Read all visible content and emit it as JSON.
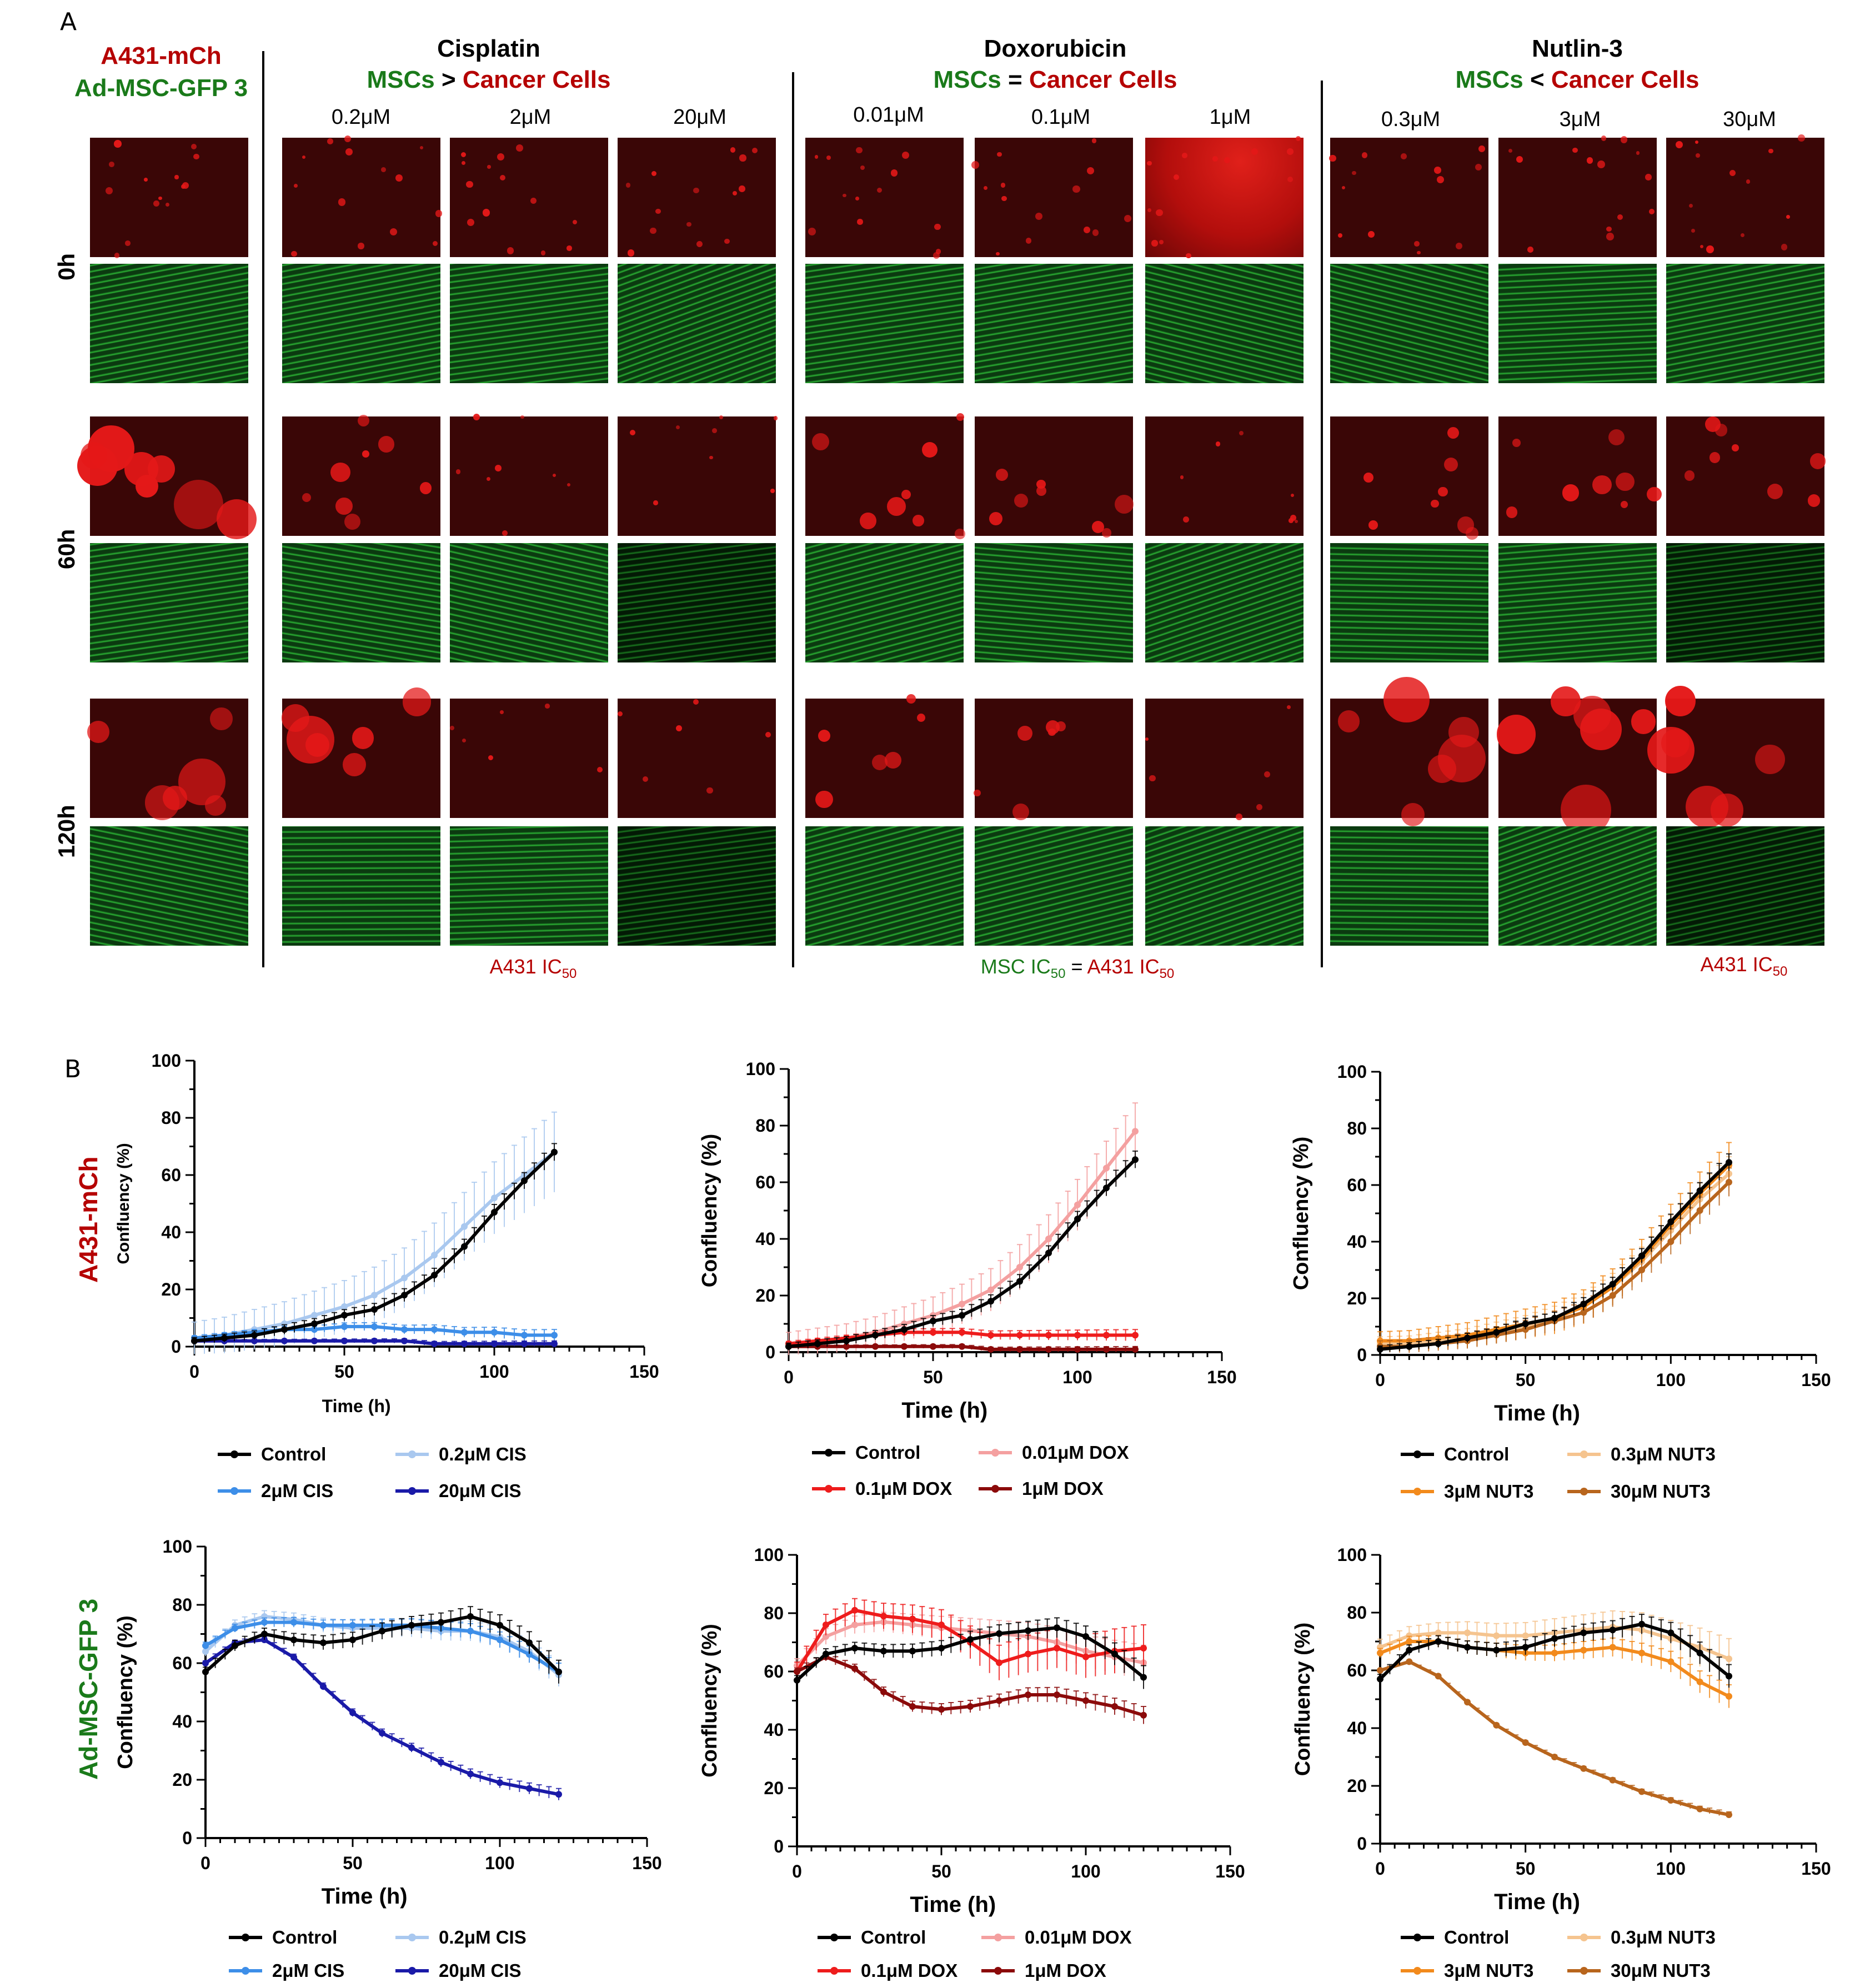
{
  "panel_a": {
    "letter": "A",
    "corner_title_line1": "A431-mCh",
    "corner_title_line2": "Ad-MSC-GFP 3",
    "row_labels": [
      "0h",
      "60h",
      "120h"
    ],
    "groups": [
      {
        "drug": "Cisplatin",
        "relation_left": "MSCs",
        "relation_op": ">",
        "relation_right": "Cancer Cells",
        "concentrations": [
          "0.2μM",
          "2μM",
          "20μM"
        ],
        "ic_note": "A431 IC50"
      },
      {
        "drug": "Doxorubicin",
        "relation_left": "MSCs",
        "relation_op": "=",
        "relation_right": "Cancer Cells",
        "concentrations": [
          "0.01μM",
          "0.1μM",
          "1μM"
        ],
        "ic_note": "MSC IC50 = A431 IC50"
      },
      {
        "drug": "Nutlin-3",
        "relation_left": "MSCs",
        "relation_op": "<",
        "relation_right": "Cancer Cells",
        "concentrations": [
          "0.3μM",
          "3μM",
          "30μM"
        ],
        "ic_note": "A431 IC50"
      }
    ],
    "ic_parts": {
      "a431": "A431 IC",
      "msc": "MSC IC",
      "sub": "50",
      "eq": " = "
    }
  },
  "panel_b": {
    "letter": "B",
    "row_label_top": "A431-mCh",
    "row_label_bottom": "Ad-MSC-GFP 3"
  },
  "colors": {
    "black": "#000000",
    "cis_light": "#a9c8ef",
    "cis_mid": "#3d8ee8",
    "cis_dark": "#1a1aa8",
    "dox_light": "#f4a0a0",
    "dox_mid": "#ee1c1c",
    "dox_dark": "#8b0a0a",
    "nut_light": "#f5c48f",
    "nut_mid": "#f28a1c",
    "nut_dark": "#b8651d",
    "red_text": "#b50000",
    "green_text": "#1a7a1a"
  },
  "chart_data": [
    {
      "id": "cis-a431",
      "type": "line",
      "title": "",
      "xlabel": "Time (h)",
      "ylabel": "Confluency (%)",
      "xlim": [
        0,
        150
      ],
      "ylim": [
        0,
        100
      ],
      "xticks": [
        0,
        50,
        100,
        150
      ],
      "yticks": [
        0,
        20,
        40,
        60,
        80,
        100
      ],
      "series": [
        {
          "name": "Control",
          "color": "#000000",
          "x": [
            0,
            10,
            20,
            30,
            40,
            50,
            60,
            70,
            80,
            90,
            100,
            110,
            120
          ],
          "y": [
            2,
            3,
            4,
            6,
            8,
            11,
            13,
            18,
            25,
            35,
            47,
            58,
            68
          ],
          "err": 3
        },
        {
          "name": "0.2μM CIS",
          "color": "#a9c8ef",
          "x": [
            0,
            10,
            20,
            30,
            40,
            50,
            60,
            70,
            80,
            90,
            100,
            110,
            120
          ],
          "y": [
            3,
            4,
            6,
            8,
            11,
            14,
            18,
            24,
            32,
            42,
            52,
            60,
            68
          ],
          "err": 14
        },
        {
          "name": "2μM CIS",
          "color": "#3d8ee8",
          "x": [
            0,
            10,
            20,
            30,
            40,
            50,
            60,
            70,
            80,
            90,
            100,
            110,
            120
          ],
          "y": [
            3,
            4,
            5,
            6,
            6,
            7,
            7,
            6,
            6,
            5,
            5,
            4,
            4
          ],
          "err": 2
        },
        {
          "name": "20μM CIS",
          "color": "#1a1aa8",
          "x": [
            0,
            10,
            20,
            30,
            40,
            50,
            60,
            70,
            80,
            90,
            100,
            110,
            120
          ],
          "y": [
            2,
            2,
            2,
            2,
            2,
            2,
            2,
            2,
            1,
            1,
            1,
            1,
            1
          ],
          "err": 1
        }
      ]
    },
    {
      "id": "dox-a431",
      "type": "line",
      "title": "",
      "xlabel": "Time (h)",
      "ylabel": "Confluency (%)",
      "xlim": [
        0,
        150
      ],
      "ylim": [
        0,
        100
      ],
      "xticks": [
        0,
        50,
        100,
        150
      ],
      "yticks": [
        0,
        20,
        40,
        60,
        80,
        100
      ],
      "series": [
        {
          "name": "Control",
          "color": "#000000",
          "x": [
            0,
            10,
            20,
            30,
            40,
            50,
            60,
            70,
            80,
            90,
            100,
            110,
            120
          ],
          "y": [
            2,
            3,
            4,
            6,
            8,
            11,
            13,
            18,
            25,
            35,
            47,
            58,
            68
          ],
          "err": 3
        },
        {
          "name": "0.01μM DOX",
          "color": "#f4a0a0",
          "x": [
            0,
            10,
            20,
            30,
            40,
            50,
            60,
            70,
            80,
            90,
            100,
            110,
            120
          ],
          "y": [
            3,
            4,
            5,
            7,
            10,
            13,
            17,
            22,
            30,
            40,
            52,
            65,
            78
          ],
          "err": 10
        },
        {
          "name": "0.1μM DOX",
          "color": "#ee1c1c",
          "x": [
            0,
            10,
            20,
            30,
            40,
            50,
            60,
            70,
            80,
            90,
            100,
            110,
            120
          ],
          "y": [
            3,
            4,
            5,
            6,
            7,
            7,
            7,
            6,
            6,
            6,
            6,
            6,
            6
          ],
          "err": 2
        },
        {
          "name": "1μM DOX",
          "color": "#8b0a0a",
          "x": [
            0,
            10,
            20,
            30,
            40,
            50,
            60,
            70,
            80,
            90,
            100,
            110,
            120
          ],
          "y": [
            2,
            2,
            2,
            2,
            2,
            2,
            2,
            1,
            1,
            1,
            1,
            1,
            1
          ],
          "err": 1
        }
      ]
    },
    {
      "id": "nut-a431",
      "type": "line",
      "title": "",
      "xlabel": "Time (h)",
      "ylabel": "Confluency (%)",
      "xlim": [
        0,
        150
      ],
      "ylim": [
        0,
        100
      ],
      "xticks": [
        0,
        50,
        100,
        150
      ],
      "yticks": [
        0,
        20,
        40,
        60,
        80,
        100
      ],
      "series": [
        {
          "name": "Control",
          "color": "#000000",
          "x": [
            0,
            10,
            20,
            30,
            40,
            50,
            60,
            70,
            80,
            90,
            100,
            110,
            120
          ],
          "y": [
            2,
            3,
            4,
            6,
            8,
            11,
            13,
            18,
            25,
            35,
            47,
            58,
            68
          ],
          "err": 3
        },
        {
          "name": "0.3μM NUT3",
          "color": "#f5c48f",
          "x": [
            0,
            10,
            20,
            30,
            40,
            50,
            60,
            70,
            80,
            90,
            100,
            110,
            120
          ],
          "y": [
            4,
            4,
            5,
            6,
            8,
            10,
            13,
            17,
            24,
            33,
            44,
            55,
            64
          ],
          "err": 6
        },
        {
          "name": "3μM NUT3",
          "color": "#f28a1c",
          "x": [
            0,
            10,
            20,
            30,
            40,
            50,
            60,
            70,
            80,
            90,
            100,
            110,
            120
          ],
          "y": [
            5,
            5,
            6,
            7,
            9,
            11,
            13,
            17,
            24,
            34,
            46,
            57,
            67
          ],
          "err": 8
        },
        {
          "name": "30μM NUT3",
          "color": "#b8651d",
          "x": [
            0,
            10,
            20,
            30,
            40,
            50,
            60,
            70,
            80,
            90,
            100,
            110,
            120
          ],
          "y": [
            3,
            3,
            4,
            5,
            7,
            9,
            12,
            15,
            21,
            30,
            40,
            51,
            61
          ],
          "err": 5
        }
      ]
    },
    {
      "id": "cis-msc",
      "type": "line",
      "title": "",
      "xlabel": "Time (h)",
      "ylabel": "Confluency (%)",
      "xlim": [
        0,
        150
      ],
      "ylim": [
        0,
        100
      ],
      "xticks": [
        0,
        50,
        100,
        150
      ],
      "yticks": [
        0,
        20,
        40,
        60,
        80,
        100
      ],
      "series": [
        {
          "name": "Control",
          "color": "#000000",
          "x": [
            0,
            10,
            20,
            30,
            40,
            50,
            60,
            70,
            80,
            90,
            100,
            110,
            120
          ],
          "y": [
            57,
            66,
            70,
            68,
            67,
            68,
            71,
            73,
            74,
            76,
            73,
            67,
            57
          ],
          "err": 4
        },
        {
          "name": "0.2μM CIS",
          "color": "#a9c8ef",
          "x": [
            0,
            10,
            20,
            30,
            40,
            50,
            60,
            70,
            80,
            90,
            100,
            110,
            120
          ],
          "y": [
            64,
            73,
            76,
            75,
            73,
            72,
            72,
            72,
            71,
            71,
            69,
            64,
            56
          ],
          "err": 4
        },
        {
          "name": "2μM CIS",
          "color": "#3d8ee8",
          "x": [
            0,
            10,
            20,
            30,
            40,
            50,
            60,
            70,
            80,
            90,
            100,
            110,
            120
          ],
          "y": [
            66,
            72,
            74,
            74,
            73,
            73,
            73,
            73,
            72,
            71,
            68,
            63,
            57
          ],
          "err": 3
        },
        {
          "name": "20μM CIS",
          "color": "#1a1aa8",
          "x": [
            0,
            10,
            20,
            30,
            40,
            50,
            60,
            70,
            80,
            90,
            100,
            110,
            120
          ],
          "y": [
            60,
            67,
            68,
            62,
            52,
            43,
            36,
            31,
            26,
            22,
            19,
            17,
            15
          ],
          "err": 2
        }
      ]
    },
    {
      "id": "dox-msc",
      "type": "line",
      "title": "",
      "xlabel": "Time (h)",
      "ylabel": "Confluency (%)",
      "xlim": [
        0,
        150
      ],
      "ylim": [
        0,
        100
      ],
      "xticks": [
        0,
        50,
        100,
        150
      ],
      "yticks": [
        0,
        20,
        40,
        60,
        80,
        100
      ],
      "series": [
        {
          "name": "Control",
          "color": "#000000",
          "x": [
            0,
            10,
            20,
            30,
            40,
            50,
            60,
            70,
            80,
            90,
            100,
            110,
            120
          ],
          "y": [
            57,
            66,
            68,
            67,
            67,
            68,
            71,
            73,
            74,
            75,
            72,
            66,
            58
          ],
          "err": 4
        },
        {
          "name": "0.01μM DOX",
          "color": "#f4a0a0",
          "x": [
            0,
            10,
            20,
            30,
            40,
            50,
            60,
            70,
            80,
            90,
            100,
            110,
            120
          ],
          "y": [
            62,
            72,
            76,
            77,
            76,
            75,
            74,
            73,
            72,
            70,
            67,
            65,
            63
          ],
          "err": 6
        },
        {
          "name": "0.1μM DOX",
          "color": "#ee1c1c",
          "x": [
            0,
            10,
            20,
            30,
            40,
            50,
            60,
            70,
            80,
            90,
            100,
            110,
            120
          ],
          "y": [
            60,
            76,
            81,
            79,
            78,
            76,
            70,
            63,
            66,
            68,
            65,
            67,
            68
          ],
          "err": 8
        },
        {
          "name": "1μM DOX",
          "color": "#8b0a0a",
          "x": [
            0,
            10,
            20,
            30,
            40,
            50,
            60,
            70,
            80,
            90,
            100,
            110,
            120
          ],
          "y": [
            60,
            65,
            61,
            53,
            48,
            47,
            48,
            50,
            52,
            52,
            50,
            48,
            45
          ],
          "err": 3
        }
      ]
    },
    {
      "id": "nut-msc",
      "type": "line",
      "title": "",
      "xlabel": "Time (h)",
      "ylabel": "Confluency (%)",
      "xlim": [
        0,
        150
      ],
      "ylim": [
        0,
        100
      ],
      "xticks": [
        0,
        50,
        100,
        150
      ],
      "yticks": [
        0,
        20,
        40,
        60,
        80,
        100
      ],
      "series": [
        {
          "name": "Control",
          "color": "#000000",
          "x": [
            0,
            10,
            20,
            30,
            40,
            50,
            60,
            70,
            80,
            90,
            100,
            110,
            120
          ],
          "y": [
            57,
            67,
            70,
            68,
            67,
            68,
            71,
            73,
            74,
            76,
            73,
            66,
            58
          ],
          "err": 4
        },
        {
          "name": "0.3μM NUT3",
          "color": "#f5c48f",
          "x": [
            0,
            10,
            20,
            30,
            40,
            50,
            60,
            70,
            80,
            90,
            100,
            110,
            120
          ],
          "y": [
            68,
            72,
            73,
            73,
            72,
            72,
            73,
            74,
            75,
            74,
            71,
            68,
            64
          ],
          "err": 7
        },
        {
          "name": "3μM NUT3",
          "color": "#f28a1c",
          "x": [
            0,
            10,
            20,
            30,
            40,
            50,
            60,
            70,
            80,
            90,
            100,
            110,
            120
          ],
          "y": [
            66,
            70,
            70,
            68,
            67,
            66,
            66,
            67,
            68,
            66,
            63,
            56,
            51
          ],
          "err": 4
        },
        {
          "name": "30μM NUT3",
          "color": "#b8651d",
          "x": [
            0,
            10,
            20,
            30,
            40,
            50,
            60,
            70,
            80,
            90,
            100,
            110,
            120
          ],
          "y": [
            60,
            63,
            58,
            49,
            41,
            35,
            30,
            26,
            22,
            18,
            15,
            12,
            10
          ],
          "err": 1
        }
      ]
    }
  ]
}
